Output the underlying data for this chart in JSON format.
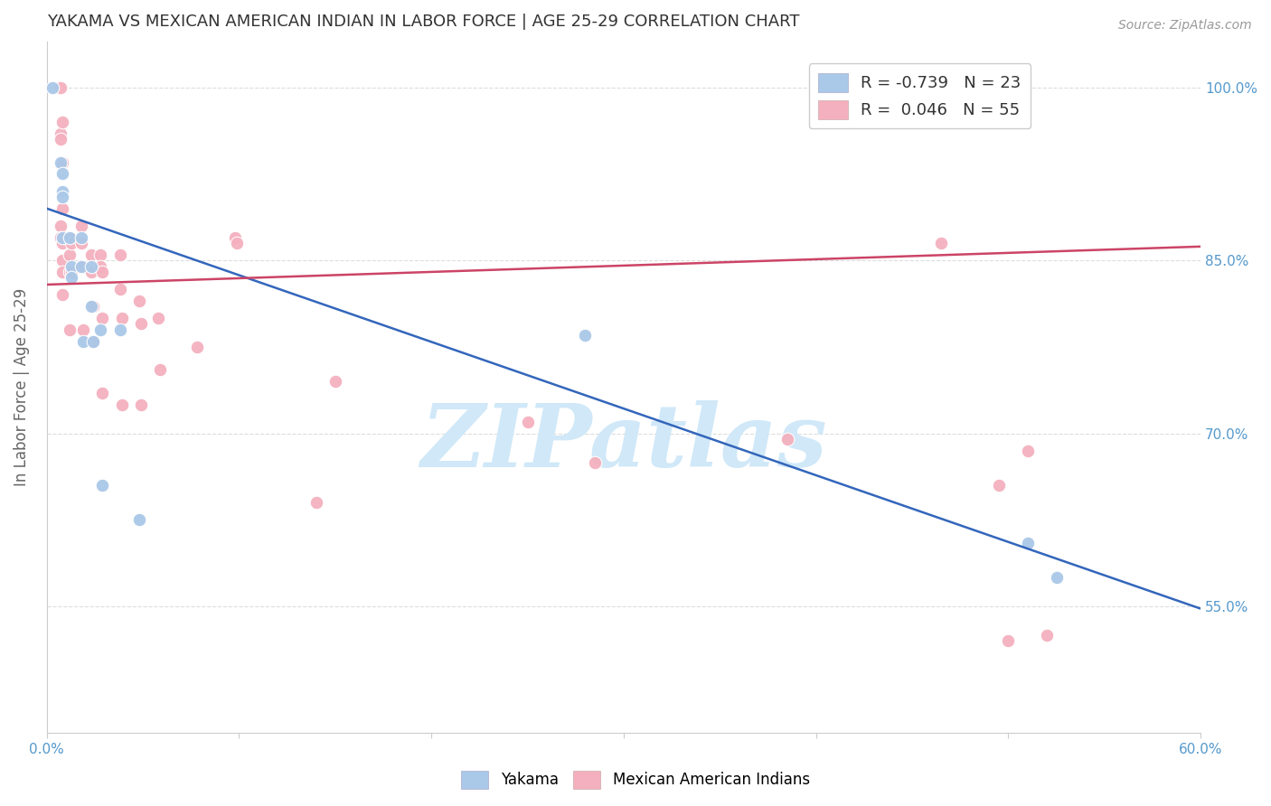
{
  "title": "YAKAMA VS MEXICAN AMERICAN INDIAN IN LABOR FORCE | AGE 25-29 CORRELATION CHART",
  "source": "Source: ZipAtlas.com",
  "ylabel": "In Labor Force | Age 25-29",
  "xlim": [
    0.0,
    0.6
  ],
  "ylim": [
    0.44,
    1.04
  ],
  "x_ticks": [
    0.0,
    0.1,
    0.2,
    0.3,
    0.4,
    0.5,
    0.6
  ],
  "x_tick_labels": [
    "0.0%",
    "",
    "",
    "",
    "",
    "",
    "60.0%"
  ],
  "y_ticks": [
    0.55,
    0.7,
    0.85,
    1.0
  ],
  "y_tick_labels": [
    "55.0%",
    "70.0%",
    "85.0%",
    "100.0%"
  ],
  "yakama_color": "#aac8e8",
  "mexican_color": "#f4b0be",
  "trendline_yakama_color": "#3366bb",
  "trendline_mexican_color": "#cc4466",
  "background_color": "#ffffff",
  "grid_color": "#dddddd",
  "axis_label_color": "#5599cc",
  "title_color": "#333333",
  "watermark": "ZIPatlas",
  "watermark_color": "#d0e8f8",
  "yakama_x": [
    0.003,
    0.007,
    0.008,
    0.008,
    0.008,
    0.008,
    0.012,
    0.013,
    0.013,
    0.018,
    0.018,
    0.019,
    0.023,
    0.023,
    0.024,
    0.028,
    0.029,
    0.038,
    0.048,
    0.28,
    0.51,
    0.525
  ],
  "yakama_y": [
    1.0,
    0.935,
    0.925,
    0.91,
    0.905,
    0.87,
    0.87,
    0.845,
    0.835,
    0.87,
    0.845,
    0.78,
    0.845,
    0.81,
    0.78,
    0.79,
    0.655,
    0.79,
    0.625,
    0.785,
    0.605,
    0.575
  ],
  "mexican_x": [
    0.007,
    0.007,
    0.007,
    0.007,
    0.007,
    0.008,
    0.008,
    0.008,
    0.008,
    0.008,
    0.008,
    0.008,
    0.012,
    0.012,
    0.012,
    0.012,
    0.013,
    0.013,
    0.018,
    0.018,
    0.018,
    0.019,
    0.019,
    0.023,
    0.023,
    0.024,
    0.024,
    0.028,
    0.028,
    0.029,
    0.029,
    0.029,
    0.038,
    0.038,
    0.039,
    0.039,
    0.048,
    0.049,
    0.049,
    0.058,
    0.059,
    0.078,
    0.098,
    0.099,
    0.14,
    0.15,
    0.25,
    0.285,
    0.385,
    0.465,
    0.52,
    0.51,
    0.495,
    0.5
  ],
  "mexican_y": [
    1.0,
    0.96,
    0.955,
    0.88,
    0.87,
    0.97,
    0.935,
    0.895,
    0.865,
    0.85,
    0.84,
    0.82,
    0.87,
    0.855,
    0.84,
    0.79,
    0.865,
    0.84,
    0.88,
    0.865,
    0.845,
    0.845,
    0.79,
    0.855,
    0.84,
    0.81,
    0.78,
    0.855,
    0.845,
    0.84,
    0.8,
    0.735,
    0.855,
    0.825,
    0.8,
    0.725,
    0.815,
    0.795,
    0.725,
    0.8,
    0.755,
    0.775,
    0.87,
    0.865,
    0.64,
    0.745,
    0.71,
    0.675,
    0.695,
    0.865,
    0.525,
    0.685,
    0.655,
    0.52
  ],
  "trendline_yakama_x0": 0.0,
  "trendline_yakama_y0": 0.895,
  "trendline_yakama_x1": 0.6,
  "trendline_yakama_y1": 0.548,
  "trendline_mexican_x0": 0.0,
  "trendline_mexican_y0": 0.829,
  "trendline_mexican_x1": 0.6,
  "trendline_mexican_y1": 0.862
}
